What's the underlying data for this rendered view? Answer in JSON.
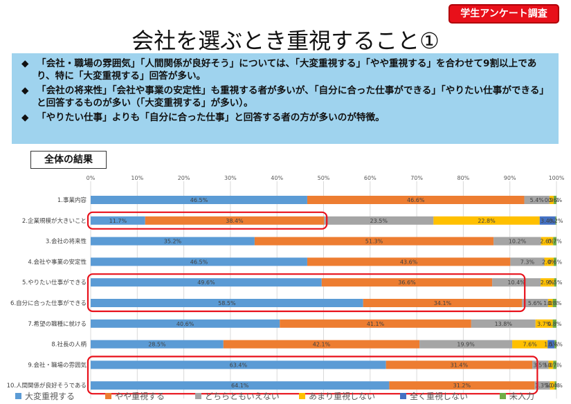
{
  "badge": "学生アンケート調査",
  "title": "会社を選ぶとき重視すること①",
  "summary": {
    "marker": "◆",
    "bullets": [
      "「会社・職場の雰囲気」「人間関係が良好そう」については、「大変重視する」「やや重視する」を合わせて9割以上であり、特に「大変重視する」回答が多い。",
      "「会社の将来性」「会社や事業の安定性」も重視する者が多いが、「自分に合った仕事ができる」「やりたい仕事ができる」と回答するものが多い（「大変重視する」が多い）。",
      "「やりたい仕事」よりも「自分に合った仕事」と回答する者の方が多いのが特徴。"
    ]
  },
  "section_label": "全体の結果",
  "chart_data": {
    "type": "bar",
    "orientation": "horizontal",
    "stacked": true,
    "xlim": [
      0,
      100
    ],
    "x_ticks": [
      "0%",
      "10%",
      "20%",
      "30%",
      "40%",
      "50%",
      "60%",
      "70%",
      "80%",
      "90%",
      "100%"
    ],
    "grid": true,
    "legend_position": "bottom",
    "categories": [
      "1.事業内容",
      "2.企業規模が大きいこと",
      "3.会社の将来性",
      "4.会社や事業の安定性",
      "5.やりたい仕事ができる",
      "6.自分に合った仕事ができる",
      "7.希望の職種に就ける",
      "8.社長の人柄",
      "9.会社・職場の雰囲気",
      "10.人間関係が良好そうである"
    ],
    "series": [
      {
        "name": "大変重視する",
        "color": "#5b9bd5",
        "values": [
          46.5,
          11.7,
          35.2,
          46.5,
          49.6,
          58.5,
          40.6,
          28.5,
          63.4,
          64.1
        ],
        "labels": [
          "46.5%",
          "11.7%",
          "35.2%",
          "46.5%",
          "49.6%",
          "58.5%",
          "40.6%",
          "28.5%",
          "63.4%",
          "64.1%"
        ]
      },
      {
        "name": "やや重視する",
        "color": "#ed7d31",
        "values": [
          46.6,
          38.4,
          51.3,
          43.6,
          36.6,
          34.1,
          41.1,
          42.1,
          31.4,
          31.2
        ],
        "labels": [
          "46.6%",
          "38.4%",
          "51.3%",
          "43.6%",
          "36.6%",
          "34.1%",
          "41.1%",
          "42.1%",
          "31.4%",
          "31.2%"
        ]
      },
      {
        "name": "どちらともいえない",
        "color": "#a5a5a5",
        "values": [
          5.4,
          23.5,
          10.2,
          7.3,
          10.4,
          5.6,
          13.8,
          19.9,
          3.5,
          3.3
        ],
        "labels": [
          "5.4%",
          "23.5%",
          "10.2%",
          "7.3%",
          "10.4%",
          "5.6%",
          "13.8%",
          "19.9%",
          "3.5%",
          "3.3%"
        ]
      },
      {
        "name": "あまり重視しない",
        "color": "#ffc000",
        "values": [
          0.9,
          22.8,
          2.6,
          2.0,
          2.9,
          1.0,
          3.7,
          7.6,
          1.0,
          1.0
        ],
        "labels": [
          "0.9%",
          "22.8%",
          "2.6%",
          "2.0%",
          "2.9%",
          "1.0%",
          "3.7%",
          "7.6%",
          "1.0%",
          "1.0%"
        ]
      },
      {
        "name": "全く重視しない",
        "color": "#4472c4",
        "values": [
          0.0,
          3.4,
          0.0,
          0.0,
          0.0,
          0.0,
          0.0,
          1.5,
          0.0,
          0.0
        ],
        "labels": [
          "0.0%",
          "3.4%",
          "0.0%",
          "0.0%",
          "0.0%",
          "0.0%",
          "0.0%",
          "1.5%",
          "0.0%",
          "0.0%"
        ]
      },
      {
        "name": "未入力",
        "color": "#70ad47",
        "values": [
          0.6,
          0.2,
          0.7,
          0.6,
          0.5,
          0.8,
          0.8,
          0.4,
          0.7,
          0.4
        ],
        "labels": [
          "0.6%",
          "0.2%",
          "0.7%",
          "0.6%",
          "0.5%",
          "0.8%",
          "0.8%",
          "0.4%",
          "0.7%",
          "0.4%"
        ]
      }
    ],
    "highlighted_categories": [
      [
        1,
        1
      ],
      [
        4,
        5
      ],
      [
        8,
        9
      ]
    ],
    "highlight_color": "#e8101a"
  }
}
